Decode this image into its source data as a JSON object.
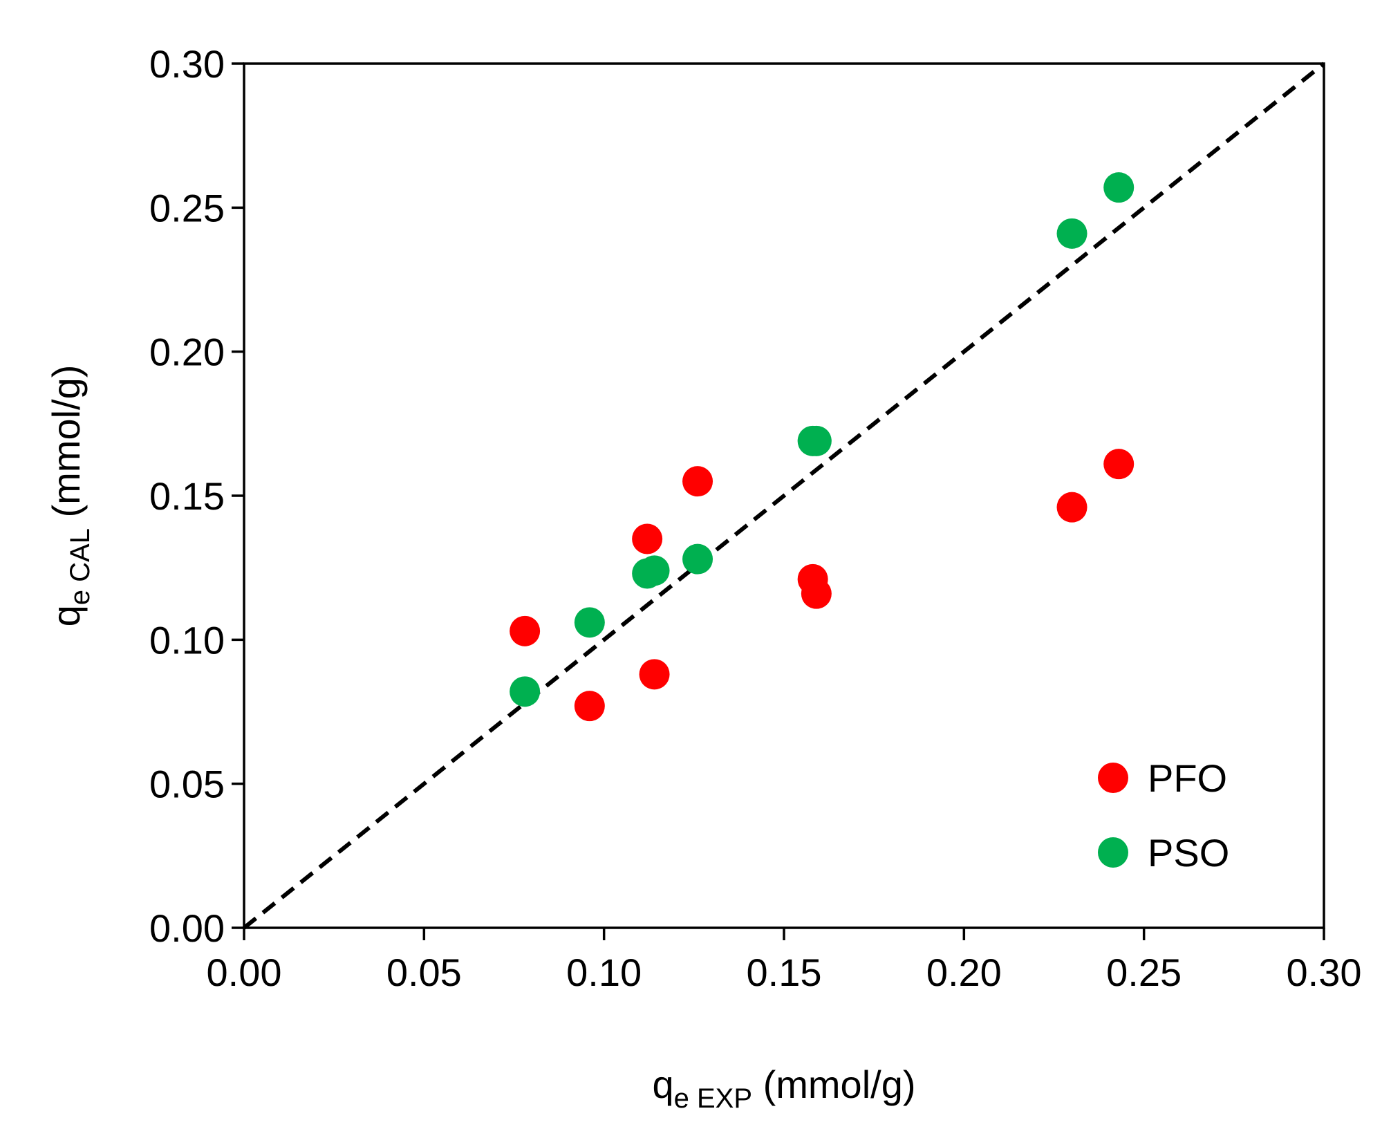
{
  "chart_data": {
    "type": "scatter",
    "title": "",
    "xlabel": {
      "main": "q",
      "sub": "e EXP",
      "unit": " (mmol/g)"
    },
    "ylabel": {
      "main": "q",
      "sub": "e CAL",
      "unit": " (mmol/g)"
    },
    "xlim": [
      0.0,
      0.3
    ],
    "ylim": [
      0.0,
      0.3
    ],
    "x_ticks": [
      0.0,
      0.05,
      0.1,
      0.15,
      0.2,
      0.25,
      0.3
    ],
    "y_ticks": [
      0.0,
      0.05,
      0.1,
      0.15,
      0.2,
      0.25,
      0.3
    ],
    "x_tick_labels": [
      "0.00",
      "0.05",
      "0.10",
      "0.15",
      "0.20",
      "0.25",
      "0.30"
    ],
    "y_tick_labels": [
      "0.00",
      "0.05",
      "0.10",
      "0.15",
      "0.20",
      "0.25",
      "0.30"
    ],
    "grid": false,
    "legend_position": "bottom-right",
    "reference_line": {
      "from": [
        0.0,
        0.0
      ],
      "to": [
        0.3,
        0.3
      ],
      "style": "dashed",
      "color": "#000000"
    },
    "series": [
      {
        "name": "PFO",
        "color": "#ff0000",
        "points": [
          {
            "x": 0.078,
            "y": 0.103
          },
          {
            "x": 0.096,
            "y": 0.077
          },
          {
            "x": 0.112,
            "y": 0.135
          },
          {
            "x": 0.114,
            "y": 0.088
          },
          {
            "x": 0.126,
            "y": 0.155
          },
          {
            "x": 0.158,
            "y": 0.121
          },
          {
            "x": 0.159,
            "y": 0.116
          },
          {
            "x": 0.23,
            "y": 0.146
          },
          {
            "x": 0.243,
            "y": 0.161
          }
        ]
      },
      {
        "name": "PSO",
        "color": "#00b050",
        "points": [
          {
            "x": 0.078,
            "y": 0.082
          },
          {
            "x": 0.096,
            "y": 0.106
          },
          {
            "x": 0.112,
            "y": 0.123
          },
          {
            "x": 0.114,
            "y": 0.124
          },
          {
            "x": 0.126,
            "y": 0.128
          },
          {
            "x": 0.158,
            "y": 0.169
          },
          {
            "x": 0.159,
            "y": 0.169
          },
          {
            "x": 0.23,
            "y": 0.241
          },
          {
            "x": 0.243,
            "y": 0.257
          }
        ]
      }
    ]
  }
}
